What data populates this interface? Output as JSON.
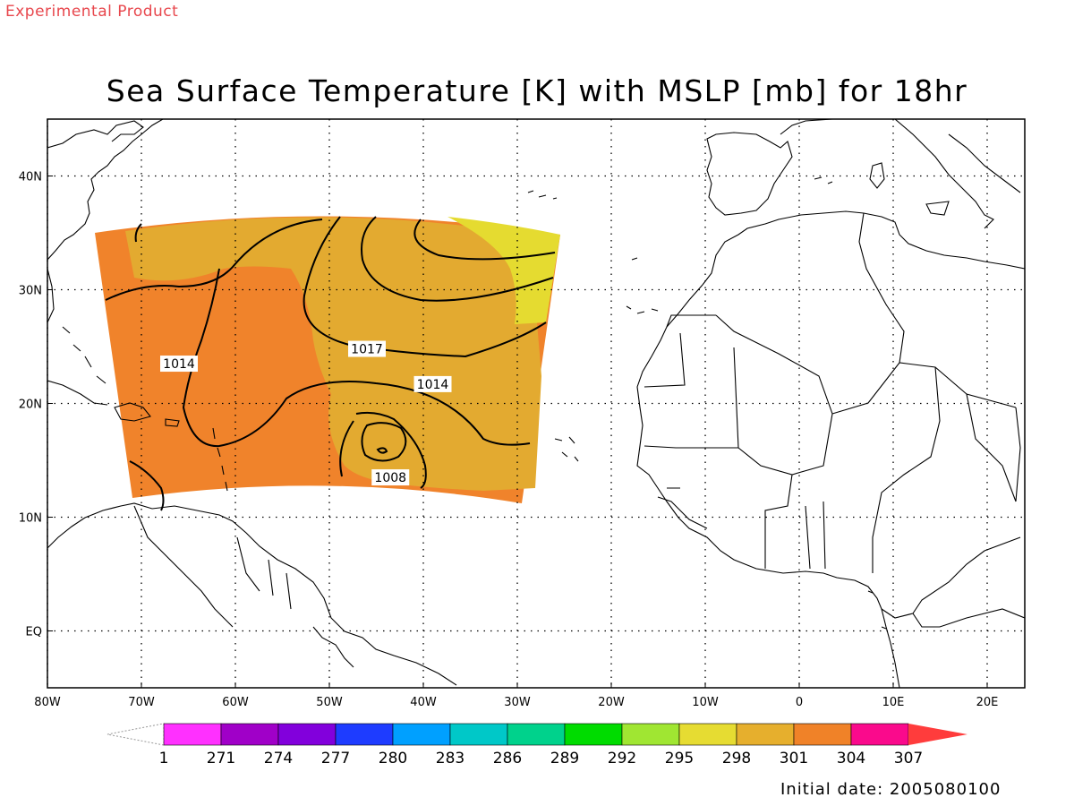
{
  "header": {
    "product_label": "Experimental Product",
    "title": "Sea Surface Temperature [K] with MSLP [mb] for 18hr",
    "initial_date": "Initial date: 2005080100"
  },
  "map": {
    "lon_labels": [
      "80W",
      "70W",
      "60W",
      "50W",
      "40W",
      "30W",
      "20W",
      "10W",
      "0",
      "10E",
      "20E"
    ],
    "lat_labels": [
      "40N",
      "30N",
      "20N",
      "10N",
      "EQ"
    ],
    "lon_range_deg": [
      -80,
      24
    ],
    "lat_range_deg": [
      -5,
      45
    ],
    "grid": "dotted"
  },
  "sst_field": {
    "colors": {
      "band_298": "#e5db30",
      "band_301": "#e3aa30",
      "band_304": "#f0832b"
    }
  },
  "mslp_contours": {
    "labels": [
      {
        "text": "1014",
        "lon": -66,
        "lat": 23.5
      },
      {
        "text": "1017",
        "lon": -46,
        "lat": 24.8
      },
      {
        "text": "1014",
        "lon": -39,
        "lat": 21.7
      },
      {
        "text": "1008",
        "lon": -43.5,
        "lat": 13.5
      }
    ]
  },
  "colorbar": {
    "labels": [
      "1",
      "271",
      "274",
      "277",
      "280",
      "283",
      "286",
      "289",
      "292",
      "295",
      "298",
      "301",
      "304",
      "307"
    ],
    "colors": [
      "#ff30ff",
      "#a000c8",
      "#8200dc",
      "#1e3cff",
      "#00a0ff",
      "#00c8c8",
      "#00d28c",
      "#00dc00",
      "#a0e632",
      "#e6dc32",
      "#e6af2d",
      "#f08228",
      "#fa0a8c",
      "#ff3c3c"
    ]
  }
}
